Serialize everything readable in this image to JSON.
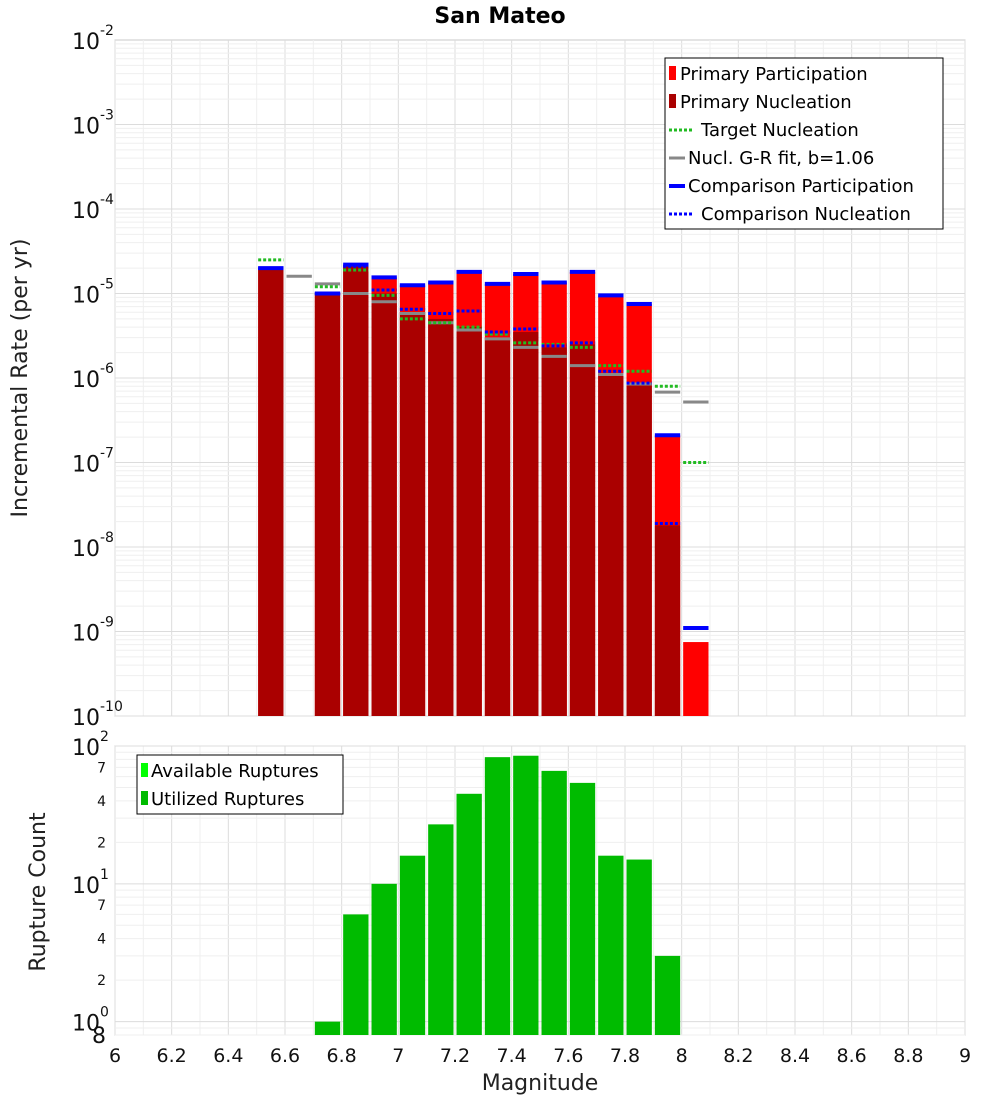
{
  "chart_data": [
    {
      "type": "bar",
      "title": "San Mateo",
      "xlabel": "Magnitude",
      "ylabel": "Incremental Rate (per yr)",
      "y_scale": "log",
      "xlim": [
        6,
        9
      ],
      "ylim": [
        1e-10,
        0.01
      ],
      "grid": true,
      "legend_position": "top-right",
      "x_ticks": [
        "6",
        "6.2",
        "6.4",
        "6.6",
        "6.8",
        "7",
        "7.2",
        "7.4",
        "7.6",
        "7.8",
        "8",
        "8.2",
        "8.4",
        "8.6",
        "8.8",
        "9"
      ],
      "y_tick_labels": [
        {
          "base": "10",
          "exp": "-2"
        },
        {
          "base": "10",
          "exp": "-3"
        },
        {
          "base": "10",
          "exp": "-4"
        },
        {
          "base": "10",
          "exp": "-5"
        },
        {
          "base": "10",
          "exp": "-6"
        },
        {
          "base": "10",
          "exp": "-7"
        },
        {
          "base": "10",
          "exp": "-8"
        },
        {
          "base": "10",
          "exp": "-9"
        },
        {
          "base": "10",
          "exp": "-10"
        }
      ],
      "legend": [
        {
          "name": "Primary Participation",
          "color": "#ff0000",
          "style": "bar"
        },
        {
          "name": "Primary Nucleation",
          "color": "#aa0000",
          "style": "bar"
        },
        {
          "name": "Target Nucleation",
          "color": "#22bb22",
          "style": "dotted"
        },
        {
          "name": "Nucl. G-R fit, b=1.06",
          "color": "#888888",
          "style": "solid"
        },
        {
          "name": "Comparison Participation",
          "color": "#0000ff",
          "style": "solid-thick"
        },
        {
          "name": "Comparison Nucleation",
          "color": "#0000ff",
          "style": "dotted"
        }
      ],
      "x": [
        6.55,
        6.65,
        6.75,
        6.85,
        6.95,
        7.05,
        7.15,
        7.25,
        7.35,
        7.45,
        7.55,
        7.65,
        7.75,
        7.85,
        7.95,
        8.05
      ],
      "series": [
        {
          "name": "Primary Participation",
          "values": [
            2e-05,
            null,
            1e-05,
            2.2e-05,
            1.55e-05,
            1.25e-05,
            1.35e-05,
            1.8e-05,
            1.3e-05,
            1.7e-05,
            1.35e-05,
            1.8e-05,
            9.5e-06,
            7.5e-06,
            2.1e-07,
            7.5e-10
          ]
        },
        {
          "name": "Primary Nucleation",
          "values": [
            2e-05,
            null,
            1e-05,
            2.1e-05,
            1e-05,
            6e-06,
            5e-06,
            4e-06,
            3e-06,
            3.5e-06,
            2.3e-06,
            2.5e-06,
            1.1e-06,
            8.5e-07,
            1.8e-08,
            null
          ]
        },
        {
          "name": "Target Nucleation",
          "values": [
            2.5e-05,
            null,
            1.2e-05,
            1.9e-05,
            9.5e-06,
            5e-06,
            4.5e-06,
            4e-06,
            3.3e-06,
            2.6e-06,
            2.5e-06,
            2.3e-06,
            1.4e-06,
            1.2e-06,
            8e-07,
            1e-07
          ]
        },
        {
          "name": "Nucl. G-R fit, b=1.06",
          "values": [
            null,
            1.6e-05,
            1.3e-05,
            1e-05,
            8e-06,
            5.8e-06,
            4.5e-06,
            3.7e-06,
            2.9e-06,
            2.3e-06,
            1.8e-06,
            1.4e-06,
            1.1e-06,
            8.5e-07,
            6.8e-07,
            5.2e-07
          ]
        },
        {
          "name": "Comparison Participation",
          "values": [
            2e-05,
            null,
            1e-05,
            2.2e-05,
            1.55e-05,
            1.25e-05,
            1.35e-05,
            1.8e-05,
            1.3e-05,
            1.7e-05,
            1.35e-05,
            1.8e-05,
            9.5e-06,
            7.5e-06,
            2.1e-07,
            1.1e-09
          ]
        },
        {
          "name": "Comparison Nucleation",
          "values": [
            2e-05,
            null,
            1e-05,
            2.1e-05,
            1.1e-05,
            6.5e-06,
            5.8e-06,
            6.2e-06,
            3.5e-06,
            3.8e-06,
            2.4e-06,
            2.6e-06,
            1.2e-06,
            8.7e-07,
            1.9e-08,
            null
          ]
        }
      ]
    },
    {
      "type": "bar",
      "xlabel": "Magnitude",
      "ylabel": "Rupture Count",
      "y_scale": "log",
      "xlim": [
        6,
        9
      ],
      "ylim": [
        0.8,
        100
      ],
      "grid": true,
      "legend_position": "top-left",
      "x_ticks": [
        "6",
        "6.2",
        "6.4",
        "6.6",
        "6.8",
        "7",
        "7.2",
        "7.4",
        "7.6",
        "7.8",
        "8",
        "8.2",
        "8.4",
        "8.6",
        "8.8",
        "9"
      ],
      "y_tick_labels": [
        {
          "value": 100,
          "base": "10",
          "exp": "2"
        },
        {
          "value": 70,
          "label": "7"
        },
        {
          "value": 40,
          "label": "4"
        },
        {
          "value": 20,
          "label": "2"
        },
        {
          "value": 10,
          "base": "10",
          "exp": "1"
        },
        {
          "value": 7,
          "label": "7"
        },
        {
          "value": 4,
          "label": "4"
        },
        {
          "value": 2,
          "label": "2"
        },
        {
          "value": 1,
          "base": "10",
          "exp": "0"
        },
        {
          "value": 0.8,
          "label": "8"
        }
      ],
      "legend": [
        {
          "name": "Available Ruptures",
          "color": "#00ff00"
        },
        {
          "name": "Utilized Ruptures",
          "color": "#00bb00"
        }
      ],
      "x": [
        6.75,
        6.85,
        6.95,
        7.05,
        7.15,
        7.25,
        7.35,
        7.45,
        7.55,
        7.65,
        7.75,
        7.85,
        7.95
      ],
      "series": [
        {
          "name": "Utilized Ruptures",
          "values": [
            1,
            6,
            10,
            16,
            27,
            45,
            83,
            85,
            66,
            54,
            16,
            15,
            3
          ]
        }
      ]
    }
  ]
}
